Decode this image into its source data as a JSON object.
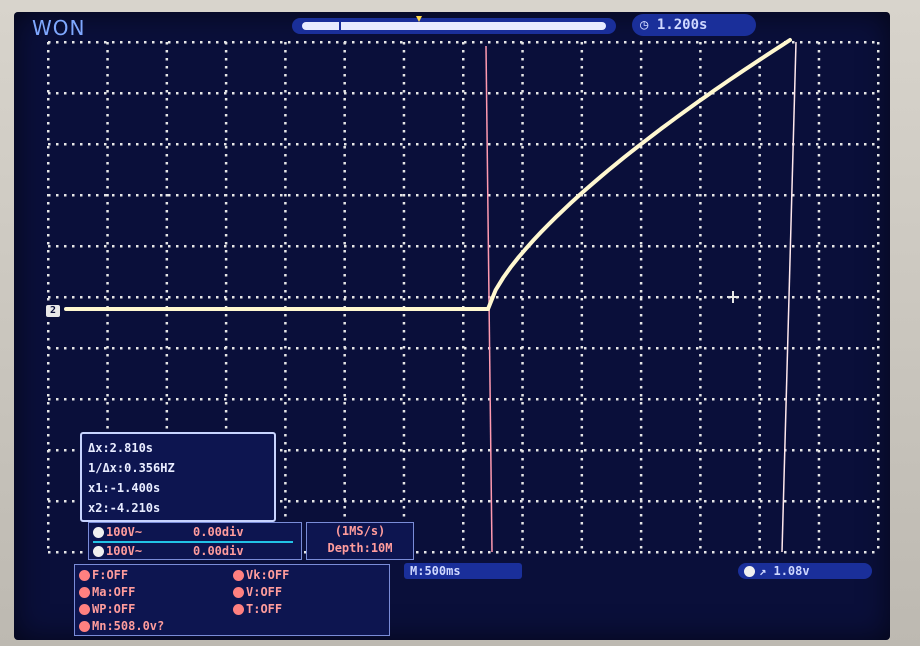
{
  "header": {
    "brand": "WON",
    "time_offset": "1.200s"
  },
  "cursor_readout": {
    "delta_t": "Δx:2.810s",
    "inv_delta_t": "1/Δx:0.356HZ",
    "x1": "x1:-1.400s",
    "x2": "x2:-4.210s"
  },
  "channels": {
    "ch1": {
      "scale": "100V~",
      "position": "0.00div"
    },
    "ch2": {
      "scale": "100V~",
      "position": "0.00div"
    }
  },
  "acquisition": {
    "sample_rate": "(1MS/s)",
    "depth": "Depth:10M"
  },
  "measurements": {
    "f": "F:OFF",
    "ma": "Ma:OFF",
    "wp": "WP:OFF",
    "mn": "Mn:508.0v?",
    "vk": "Vk:OFF",
    "v": "V:OFF",
    "t": "T:OFF"
  },
  "timebase": "M:500ms",
  "trigger": {
    "level": "1.08v"
  },
  "channel_marker": "2",
  "colors": {
    "screen": "#0a0f3a",
    "grid": "#e6e6e6",
    "trace": "#fff8d0",
    "cursor": "#ff9ab0",
    "panel_text": "#ff9c9c"
  }
}
